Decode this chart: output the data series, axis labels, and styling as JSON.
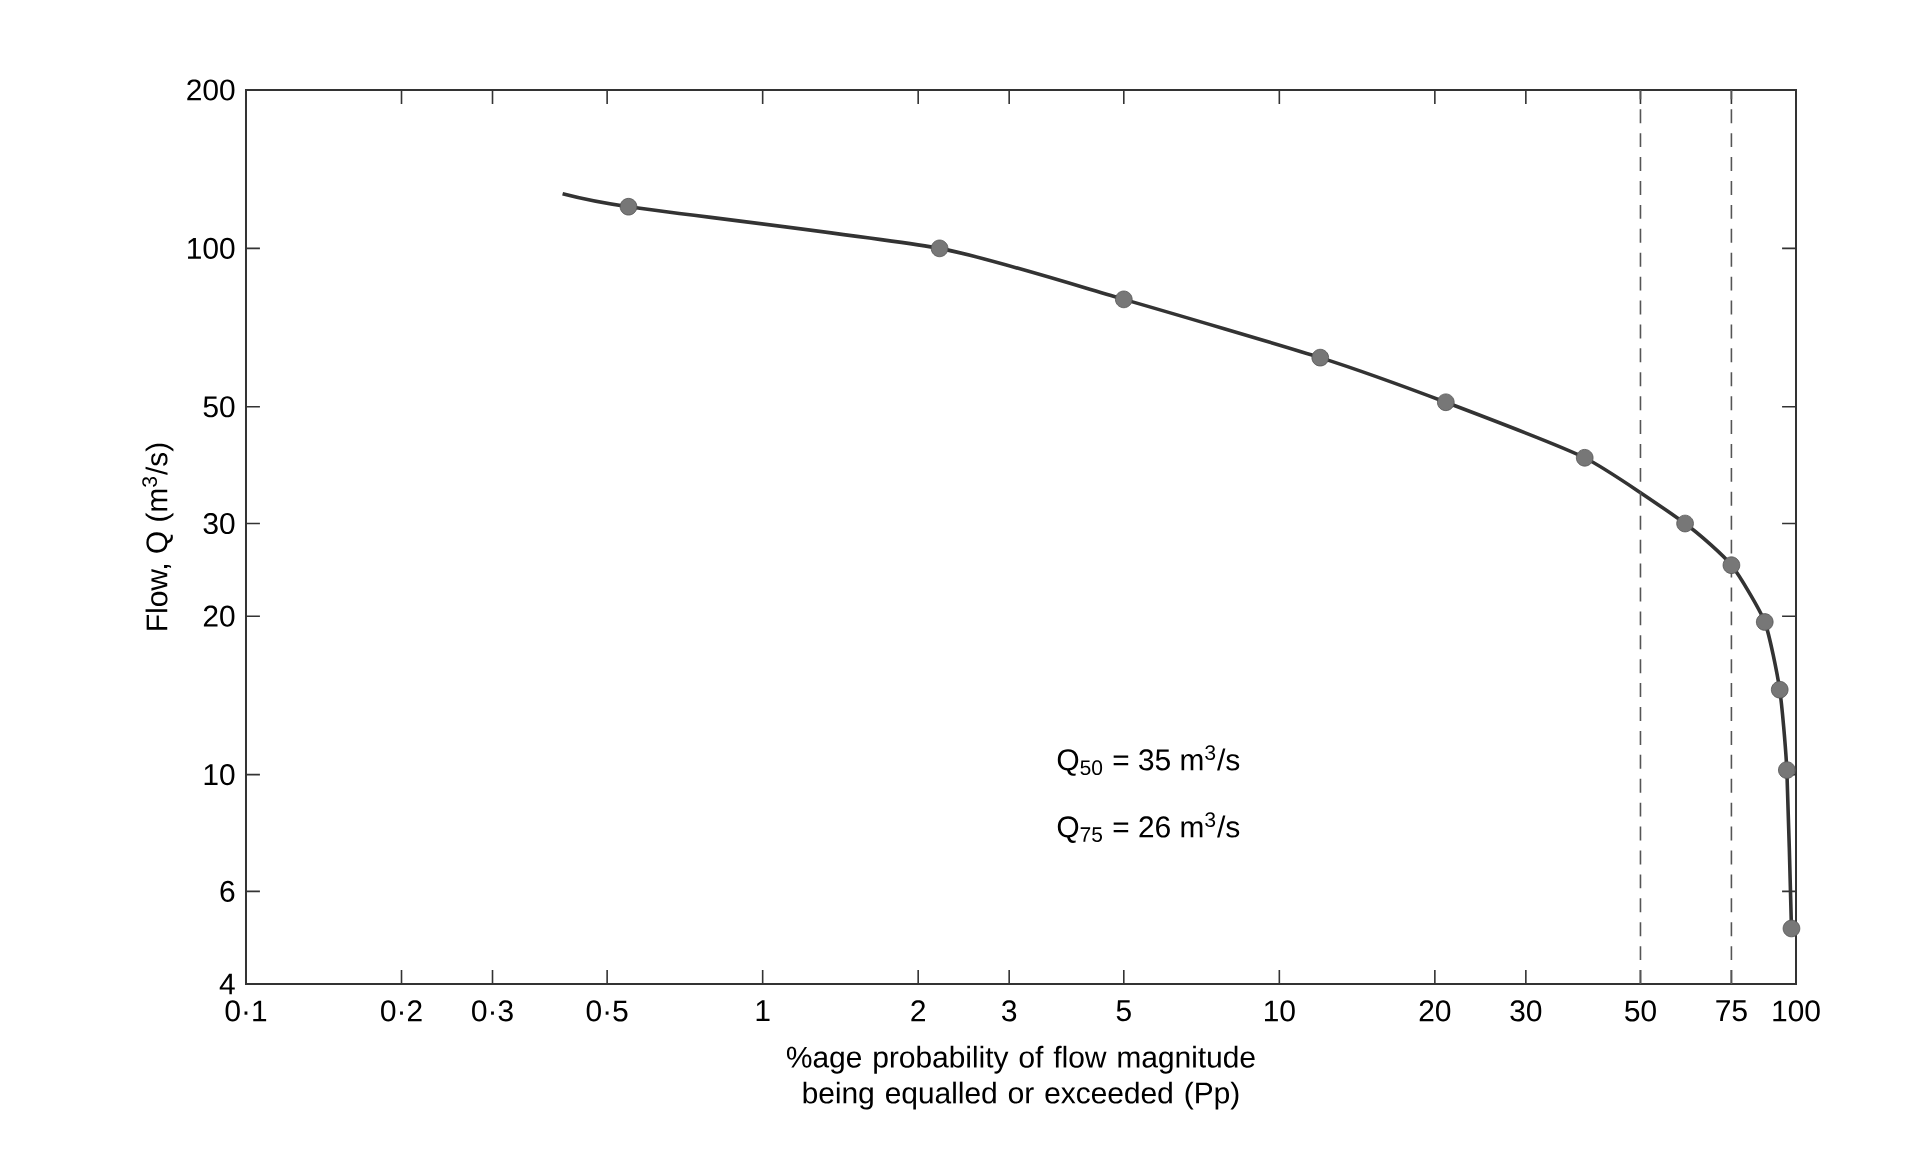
{
  "chart_data": {
    "type": "line",
    "xlabel": "%age probability of flow magnitude being equalled or exceeded (Pp)",
    "ylabel": "Flow, Q (m$^{3}$/s)",
    "log": "xy",
    "marker": "circle",
    "xlim": [
      0.1,
      100
    ],
    "ylim": [
      4,
      200
    ],
    "xticks": [
      {
        "value": 0.1,
        "label": "0·1"
      },
      {
        "value": 0.2,
        "label": "0·2"
      },
      {
        "value": 0.3,
        "label": "0·3"
      },
      {
        "value": 0.5,
        "label": "0·5"
      },
      1,
      2,
      3,
      5,
      10,
      20,
      30,
      50,
      75,
      100
    ],
    "yticks": [
      4,
      6,
      10,
      20,
      30,
      50,
      100,
      200
    ],
    "series": [
      {
        "color": "#333333",
        "marker": "none",
        "x": [
          0.41,
          0.55,
          2.2,
          5,
          12,
          21,
          39,
          61,
          75,
          87,
          93,
          96,
          98
        ],
        "values": [
          127,
          120,
          100,
          80,
          62,
          51,
          40,
          30,
          25,
          19.5,
          14.5,
          10.2,
          5.1
        ]
      },
      {
        "type": "scatter",
        "color": "#777777",
        "x": [
          0.55,
          2.2,
          5,
          12,
          21,
          39,
          61,
          75,
          87,
          93,
          96,
          98
        ],
        "values": [
          120,
          100,
          80,
          62,
          51,
          40,
          30,
          25,
          19.5,
          14.5,
          10.2,
          5.1
        ]
      }
    ],
    "ref_lines": [
      {
        "axis": "x",
        "value": 50,
        "line_style": "dashed",
        "color": "#555555"
      },
      {
        "axis": "x",
        "value": 75,
        "line_style": "dashed",
        "color": "#555555"
      }
    ],
    "annotations": [
      "Q$_{50}$ = 35 m$^{3}$/s",
      "Q$_{75}$ = 26 m$^{3}$/s"
    ]
  }
}
